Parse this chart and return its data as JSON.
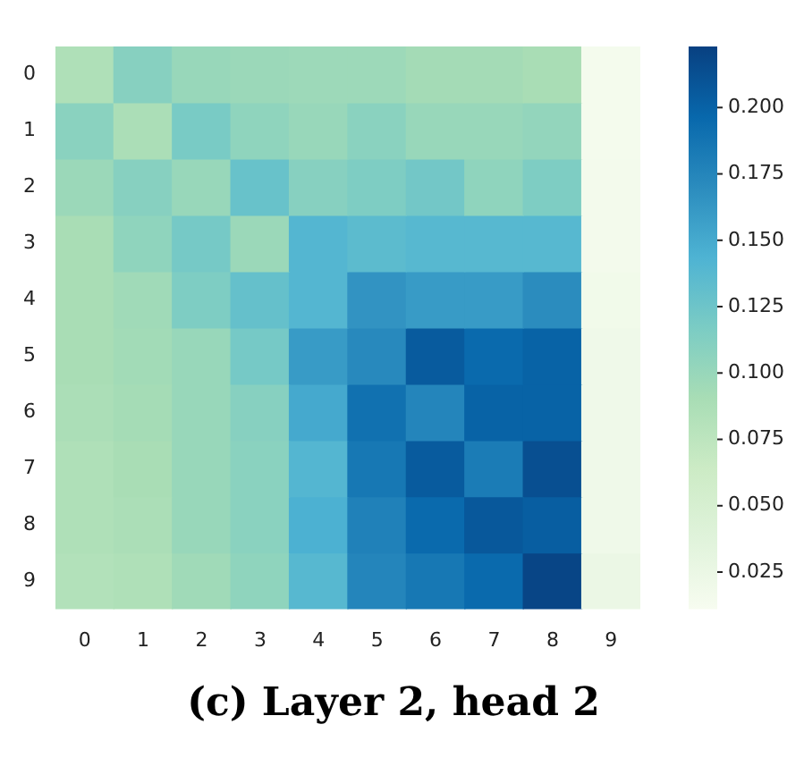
{
  "chart_data": {
    "type": "heatmap",
    "title": "(c) Layer 2, head 2",
    "categories": [
      "0",
      "1",
      "2",
      "3",
      "4",
      "5",
      "6",
      "7",
      "8",
      "9"
    ],
    "y_categories": [
      "0",
      "1",
      "2",
      "3",
      "4",
      "5",
      "6",
      "7",
      "8",
      "9"
    ],
    "clim": [
      0.011,
      0.223
    ],
    "cticks": [
      {
        "value": 0.025,
        "label": "0.025"
      },
      {
        "value": 0.05,
        "label": "0.050"
      },
      {
        "value": 0.075,
        "label": "0.075"
      },
      {
        "value": 0.1,
        "label": "0.100"
      },
      {
        "value": 0.125,
        "label": "0.125"
      },
      {
        "value": 0.15,
        "label": "0.150"
      },
      {
        "value": 0.175,
        "label": "0.175"
      },
      {
        "value": 0.2,
        "label": "0.200"
      }
    ],
    "cells": [
      [
        0.085,
        0.11,
        0.1,
        0.098,
        0.097,
        0.097,
        0.093,
        0.093,
        0.09,
        0.015
      ],
      [
        0.108,
        0.088,
        0.118,
        0.105,
        0.1,
        0.108,
        0.1,
        0.1,
        0.103,
        0.015
      ],
      [
        0.098,
        0.11,
        0.1,
        0.128,
        0.11,
        0.115,
        0.122,
        0.105,
        0.115,
        0.016
      ],
      [
        0.09,
        0.105,
        0.12,
        0.098,
        0.14,
        0.135,
        0.138,
        0.138,
        0.138,
        0.016
      ],
      [
        0.09,
        0.095,
        0.115,
        0.13,
        0.14,
        0.165,
        0.16,
        0.16,
        0.17,
        0.018
      ],
      [
        0.09,
        0.094,
        0.1,
        0.12,
        0.16,
        0.172,
        0.205,
        0.195,
        0.2,
        0.02
      ],
      [
        0.088,
        0.092,
        0.1,
        0.11,
        0.15,
        0.19,
        0.175,
        0.2,
        0.2,
        0.02
      ],
      [
        0.085,
        0.09,
        0.1,
        0.108,
        0.14,
        0.185,
        0.205,
        0.182,
        0.213,
        0.02
      ],
      [
        0.085,
        0.088,
        0.1,
        0.108,
        0.145,
        0.178,
        0.195,
        0.207,
        0.203,
        0.02
      ],
      [
        0.083,
        0.085,
        0.095,
        0.105,
        0.138,
        0.175,
        0.185,
        0.195,
        0.22,
        0.025
      ]
    ]
  }
}
